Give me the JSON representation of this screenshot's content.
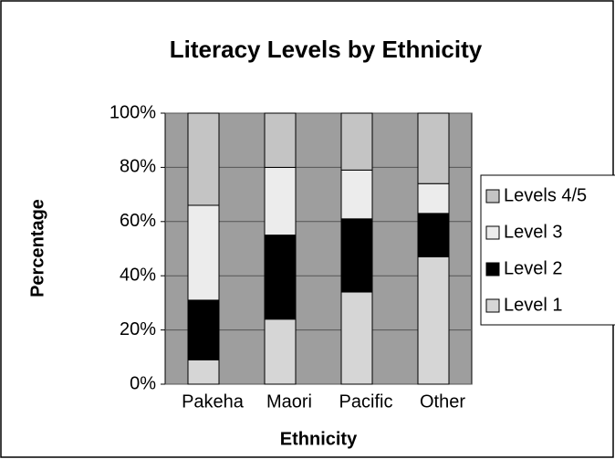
{
  "chart_data": {
    "type": "stacked_bar",
    "title": "Literacy Levels by Ethnicity",
    "x_label": "Ethnicity",
    "y_label": "Percentage",
    "categories": [
      "Pakeha",
      "Maori",
      "Pacific",
      "Other"
    ],
    "series": [
      {
        "name": "Level 1",
        "color": "#d6d6d6",
        "values": [
          9,
          24,
          34,
          47
        ]
      },
      {
        "name": "Level 2",
        "color": "#000000",
        "values": [
          22,
          31,
          27,
          16
        ]
      },
      {
        "name": "Level 3",
        "color": "#ececec",
        "values": [
          35,
          25,
          18,
          11
        ]
      },
      {
        "name": "Levels 4/5",
        "color": "#c4c4c4",
        "values": [
          34,
          20,
          21,
          26
        ]
      }
    ],
    "ylim": [
      0,
      100
    ],
    "yticks": [
      {
        "value": 0,
        "label": "0%"
      },
      {
        "value": 20,
        "label": "20%"
      },
      {
        "value": 40,
        "label": "40%"
      },
      {
        "value": 60,
        "label": "60%"
      },
      {
        "value": 80,
        "label": "80%"
      },
      {
        "value": 100,
        "label": "100%"
      }
    ],
    "grid": true,
    "legend": "right"
  }
}
